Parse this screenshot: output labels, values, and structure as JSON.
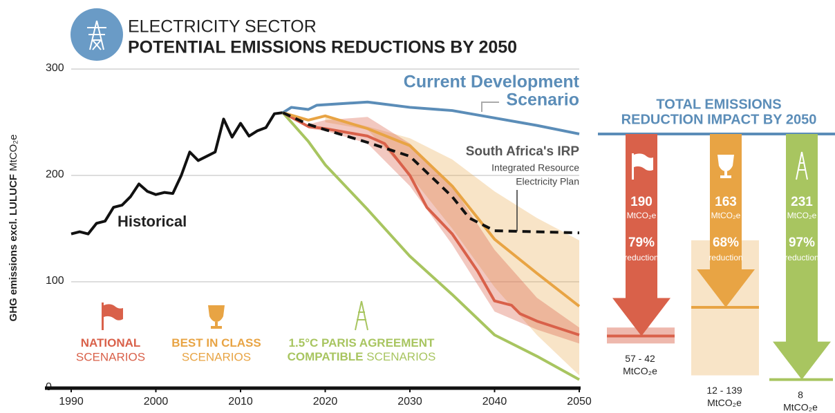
{
  "chart_data": {
    "type": "line",
    "title_small": "ELECTRICITY SECTOR",
    "title": "POTENTIAL EMISSIONS REDUCTIONS BY 2050",
    "y_label": "GHG emissions excl. LULUCF",
    "y_unit": "MtCO₂e",
    "xlim": [
      1990,
      2050
    ],
    "xticks": [
      1990,
      2000,
      2010,
      2020,
      2030,
      2040,
      2050
    ],
    "ylim": [
      0,
      300
    ],
    "yticks": [
      0,
      100,
      200,
      300
    ],
    "grid": true,
    "series": [
      {
        "name": "Historical",
        "color": "#111111",
        "x": [
          1990,
          1991,
          1992,
          1993,
          1994,
          1995,
          1996,
          1997,
          1998,
          1999,
          2000,
          2001,
          2002,
          2003,
          2004,
          2005,
          2006,
          2007,
          2008,
          2009,
          2010,
          2011,
          2012,
          2013,
          2014,
          2015
        ],
        "values": [
          145,
          147,
          145,
          155,
          157,
          170,
          172,
          180,
          192,
          185,
          182,
          184,
          183,
          200,
          222,
          214,
          218,
          222,
          253,
          236,
          249,
          237,
          242,
          245,
          258,
          259
        ]
      },
      {
        "name_lines": [
          "Current Development",
          "Scenario"
        ],
        "color": "#5b8db8",
        "x": [
          2015,
          2016,
          2018,
          2019,
          2025,
          2030,
          2035,
          2040,
          2045,
          2050
        ],
        "values": [
          259,
          264,
          262,
          266,
          269,
          264,
          261,
          254,
          247,
          239
        ]
      },
      {
        "name_lines": [
          "1.5°C PARIS AGREEMENT",
          "COMPATIBLE"
        ],
        "legend_light": "SCENARIOS",
        "color": "#a8c560",
        "x": [
          2015,
          2018,
          2020,
          2025,
          2030,
          2035,
          2040,
          2045,
          2050
        ],
        "values": [
          259,
          232,
          210,
          168,
          124,
          88,
          50,
          30,
          8
        ]
      },
      {
        "name_lines": [
          "NATIONAL"
        ],
        "legend_light": "SCENARIOS",
        "color": "#d9614a",
        "x": [
          2015,
          2018,
          2020,
          2025,
          2027,
          2030,
          2032,
          2035,
          2038,
          2040,
          2042,
          2043,
          2045,
          2050
        ],
        "values": [
          259,
          246,
          244,
          237,
          230,
          200,
          170,
          145,
          110,
          82,
          78,
          70,
          63,
          50
        ]
      },
      {
        "name_lines": [
          "BEST IN CLASS"
        ],
        "legend_light": "SCENARIOS",
        "color": "#e8a444",
        "x": [
          2015,
          2018,
          2020,
          2025,
          2030,
          2035,
          2040,
          2045,
          2050
        ],
        "values": [
          259,
          252,
          256,
          244,
          228,
          190,
          140,
          108,
          77
        ]
      },
      {
        "name": "South Africa's IRP",
        "note_lines": [
          "Integrated Resource",
          "Electricity Plan"
        ],
        "color": "#111111",
        "dashed": true,
        "x": [
          2015,
          2018,
          2020,
          2025,
          2030,
          2035,
          2037,
          2040,
          2045,
          2050
        ],
        "values": [
          259,
          248,
          243,
          231,
          218,
          180,
          160,
          148,
          147,
          146
        ]
      }
    ],
    "bands": [
      {
        "color": "#e8a444",
        "x": [
          2020,
          2025,
          2030,
          2035,
          2040,
          2045,
          2050
        ],
        "low": [
          250,
          243,
          200,
          150,
          95,
          50,
          12
        ],
        "high": [
          256,
          246,
          235,
          215,
          185,
          160,
          139
        ]
      },
      {
        "color": "#d9614a",
        "x": [
          2018,
          2020,
          2025,
          2030,
          2035,
          2040,
          2045,
          2050
        ],
        "low": [
          244,
          242,
          230,
          190,
          135,
          72,
          55,
          42
        ],
        "high": [
          248,
          252,
          255,
          230,
          190,
          130,
          85,
          57
        ]
      }
    ],
    "impact": {
      "title_lines": [
        "TOTAL EMISSIONS",
        "REDUCTION IMPACT BY 2050"
      ],
      "values": [
        190,
        163,
        231
      ],
      "unit": "MtCO₂e",
      "percent_labels": [
        "79%",
        "68%",
        "97%"
      ],
      "percent_unit": "reduction",
      "colors": [
        "#d9614a",
        "#e8a444",
        "#a8c560"
      ],
      "ranges": [
        [
          42,
          57
        ],
        [
          12,
          139
        ],
        [
          8,
          8
        ]
      ],
      "range_labels": [
        "57 - 42",
        "12 - 139",
        "8"
      ]
    }
  }
}
